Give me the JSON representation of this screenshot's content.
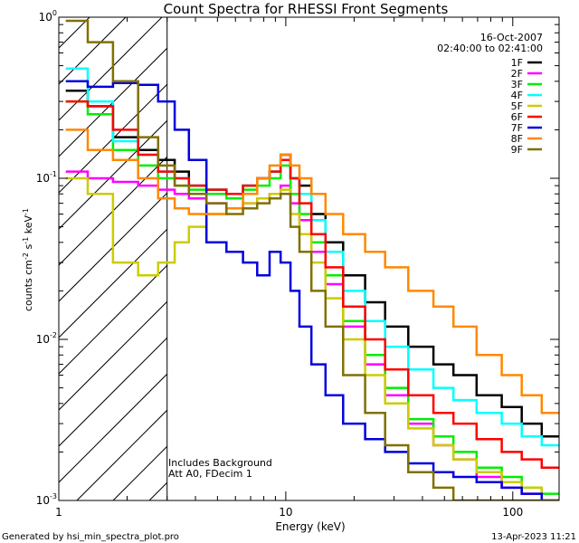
{
  "chart_data": {
    "type": "line",
    "title": "Count Spectra for RHESSI Front Segments",
    "xlabel": "Energy (keV)",
    "ylabel": "counts cm⁻² s⁻¹ keV⁻¹",
    "xscale": "log",
    "yscale": "log",
    "xlim": [
      1,
      160
    ],
    "ylim": [
      0.001,
      1
    ],
    "x_tick_labels": [
      "1",
      "10",
      "100"
    ],
    "y_tick_labels": [
      {
        "base": "10",
        "exp": "0",
        "value": 1
      },
      {
        "base": "10",
        "exp": "-1",
        "value": 0.1
      },
      {
        "base": "10",
        "exp": "-2",
        "value": 0.01
      },
      {
        "base": "10",
        "exp": "-3",
        "value": 0.001
      }
    ],
    "date": "16-Oct-2007",
    "time_range": "02:40:00 to 02:41:00",
    "annotations": [
      "Includes Background",
      "Att A0, FDecim 1"
    ],
    "low_energy_cutoff_keV": 3,
    "footer_left": "Generated by hsi_min_spectra_plot.pro",
    "footer_right": "13-Apr-2023 11:21",
    "series": [
      {
        "name": "1F",
        "color": "#000000",
        "x": [
          1.2,
          1.5,
          2,
          2.5,
          3,
          3.5,
          4,
          5,
          6,
          7,
          8,
          9,
          10,
          11,
          12,
          14,
          16,
          20,
          25,
          30,
          40,
          50,
          60,
          80,
          100,
          120,
          150
        ],
        "y": [
          0.35,
          0.28,
          0.18,
          0.15,
          0.13,
          0.11,
          0.09,
          0.085,
          0.08,
          0.09,
          0.1,
          0.11,
          0.14,
          0.1,
          0.09,
          0.06,
          0.04,
          0.025,
          0.017,
          0.012,
          0.009,
          0.007,
          0.006,
          0.0045,
          0.0038,
          0.003,
          0.0025
        ]
      },
      {
        "name": "2F",
        "color": "#ff00ff",
        "x": [
          1.2,
          1.5,
          2,
          2.5,
          3,
          3.5,
          4,
          5,
          6,
          7,
          8,
          9,
          10,
          11,
          12,
          14,
          16,
          20,
          25,
          30,
          40,
          50,
          60,
          80,
          100,
          120,
          150
        ],
        "y": [
          0.11,
          0.1,
          0.095,
          0.09,
          0.085,
          0.08,
          0.075,
          0.07,
          0.065,
          0.07,
          0.075,
          0.08,
          0.09,
          0.07,
          0.055,
          0.035,
          0.022,
          0.012,
          0.007,
          0.0045,
          0.003,
          0.0022,
          0.0018,
          0.0014,
          0.0012,
          0.0011,
          0.001
        ]
      },
      {
        "name": "3F",
        "color": "#00ee00",
        "x": [
          1.2,
          1.5,
          2,
          2.5,
          3,
          3.5,
          4,
          5,
          6,
          7,
          8,
          9,
          10,
          11,
          12,
          14,
          16,
          20,
          25,
          30,
          40,
          50,
          60,
          80,
          100,
          120,
          150
        ],
        "y": [
          0.3,
          0.25,
          0.15,
          0.12,
          0.1,
          0.09,
          0.085,
          0.08,
          0.075,
          0.085,
          0.09,
          0.1,
          0.12,
          0.08,
          0.06,
          0.04,
          0.025,
          0.013,
          0.008,
          0.005,
          0.0032,
          0.0025,
          0.002,
          0.0016,
          0.0014,
          0.0012,
          0.0011
        ]
      },
      {
        "name": "4F",
        "color": "#00ffff",
        "x": [
          1.2,
          1.5,
          2,
          2.5,
          3,
          3.5,
          4,
          5,
          6,
          7,
          8,
          9,
          10,
          11,
          12,
          14,
          16,
          20,
          25,
          30,
          40,
          50,
          60,
          80,
          100,
          120,
          150
        ],
        "y": [
          0.48,
          0.3,
          0.17,
          0.14,
          0.11,
          0.1,
          0.09,
          0.085,
          0.08,
          0.09,
          0.1,
          0.11,
          0.13,
          0.1,
          0.08,
          0.055,
          0.035,
          0.02,
          0.013,
          0.009,
          0.0065,
          0.005,
          0.0042,
          0.0035,
          0.003,
          0.0025,
          0.0022
        ]
      },
      {
        "name": "5F",
        "color": "#cccc00",
        "x": [
          1.2,
          1.5,
          2,
          2.5,
          3,
          3.5,
          4,
          5,
          6,
          7,
          8,
          9,
          10,
          11,
          12,
          14,
          16,
          20,
          25,
          30,
          40,
          50,
          60,
          80,
          100,
          120,
          150
        ],
        "y": [
          0.1,
          0.08,
          0.03,
          0.025,
          0.03,
          0.04,
          0.05,
          0.06,
          0.065,
          0.07,
          0.075,
          0.08,
          0.085,
          0.06,
          0.045,
          0.03,
          0.018,
          0.01,
          0.006,
          0.004,
          0.0028,
          0.0022,
          0.0018,
          0.0015,
          0.0013,
          0.0012,
          0.001
        ]
      },
      {
        "name": "6F",
        "color": "#ff0000",
        "x": [
          1.2,
          1.5,
          2,
          2.5,
          3,
          3.5,
          4,
          5,
          6,
          7,
          8,
          9,
          10,
          11,
          12,
          14,
          16,
          20,
          25,
          30,
          40,
          50,
          60,
          80,
          100,
          120,
          150
        ],
        "y": [
          0.3,
          0.28,
          0.2,
          0.14,
          0.11,
          0.1,
          0.09,
          0.085,
          0.08,
          0.09,
          0.1,
          0.11,
          0.13,
          0.1,
          0.07,
          0.045,
          0.028,
          0.016,
          0.01,
          0.0065,
          0.0045,
          0.0035,
          0.003,
          0.0024,
          0.002,
          0.0018,
          0.0016
        ]
      },
      {
        "name": "7F",
        "color": "#0000dd",
        "x": [
          1.2,
          1.5,
          2,
          2.5,
          3,
          3.5,
          4,
          5,
          6,
          7,
          8,
          9,
          10,
          11,
          12,
          14,
          16,
          20,
          25,
          30,
          40,
          50,
          60,
          80,
          100,
          120,
          150
        ],
        "y": [
          0.4,
          0.37,
          0.39,
          0.38,
          0.3,
          0.2,
          0.13,
          0.04,
          0.035,
          0.03,
          0.025,
          0.035,
          0.03,
          0.02,
          0.012,
          0.007,
          0.0045,
          0.003,
          0.0024,
          0.002,
          0.0017,
          0.0015,
          0.0014,
          0.0013,
          0.0012,
          0.0011,
          0.001
        ]
      },
      {
        "name": "8F",
        "color": "#ff8800",
        "x": [
          1.2,
          1.5,
          2,
          2.5,
          3,
          3.5,
          4,
          5,
          6,
          7,
          8,
          9,
          10,
          11,
          12,
          14,
          16,
          20,
          25,
          30,
          40,
          50,
          60,
          80,
          100,
          120,
          150
        ],
        "y": [
          0.2,
          0.15,
          0.13,
          0.1,
          0.075,
          0.065,
          0.06,
          0.06,
          0.065,
          0.08,
          0.1,
          0.12,
          0.14,
          0.12,
          0.1,
          0.08,
          0.06,
          0.045,
          0.035,
          0.028,
          0.02,
          0.016,
          0.012,
          0.008,
          0.006,
          0.0045,
          0.0035
        ]
      },
      {
        "name": "9F",
        "color": "#807000",
        "x": [
          1.2,
          1.5,
          2,
          2.5,
          3,
          3.5,
          4,
          5,
          6,
          7,
          8,
          9,
          10,
          11,
          12,
          14,
          16,
          20,
          25,
          30,
          40,
          50,
          60,
          80,
          100,
          120,
          150
        ],
        "y": [
          0.95,
          0.7,
          0.4,
          0.18,
          0.12,
          0.09,
          0.08,
          0.07,
          0.06,
          0.065,
          0.07,
          0.075,
          0.08,
          0.05,
          0.035,
          0.02,
          0.012,
          0.006,
          0.0035,
          0.0022,
          0.0015,
          0.0012,
          0.001,
          0.001,
          0.001,
          0.001,
          0.001
        ]
      }
    ]
  }
}
